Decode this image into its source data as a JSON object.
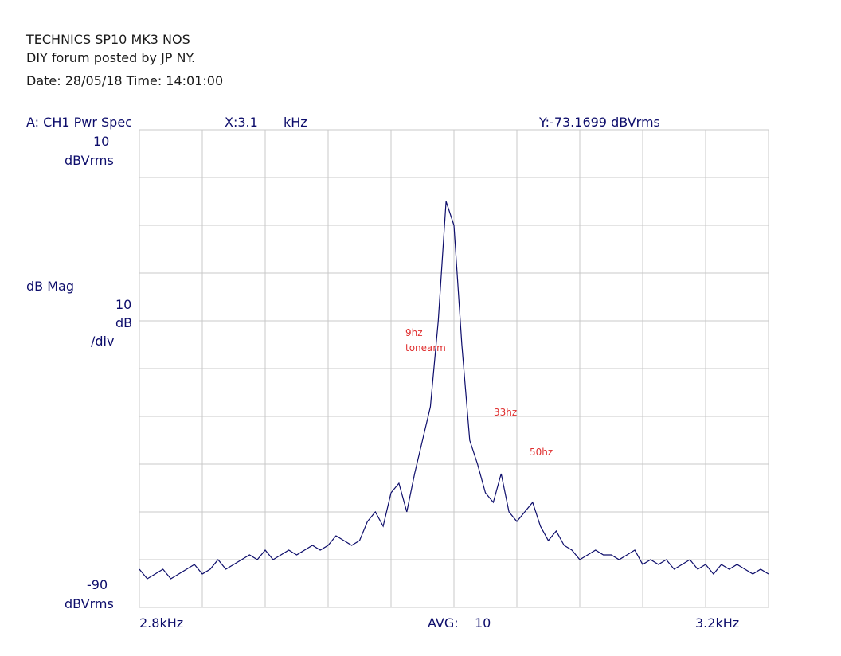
{
  "header": {
    "line1": "TECHNICS SP10 MK3 NOS",
    "line2": "DIY forum posted by JP NY.",
    "line3": "Date: 28/05/18  Time: 14:01:00"
  },
  "trace": {
    "label": "A:  CH1 Pwr Spec",
    "x_readout": "X:3.1",
    "x_unit": "kHz",
    "y_readout": "Y:-73.1699 dBVrms"
  },
  "yaxis": {
    "top_value": "10",
    "top_unit": "dBVrms",
    "mag_label": "dB Mag",
    "scale_value": "10",
    "scale_unit": "dB",
    "scale_div": "/div",
    "bottom_value": "-90",
    "bottom_unit": "dBVrms"
  },
  "xaxis": {
    "start_label": "2.8kHz",
    "avg_label": "AVG:",
    "avg_value": "10",
    "end_label": "3.2kHz"
  },
  "annotations": {
    "a1_line1": "9hz",
    "a1_line2": "tonearm",
    "a2": "33hz",
    "a3": "50hz"
  },
  "colors": {
    "trace": "#0d0d6b",
    "grid": "#c8c8c8",
    "annotation": "#e03030",
    "text_blue": "#0d0d6b"
  },
  "chart_data": {
    "type": "line",
    "xlabel": "",
    "ylabel": "dB Mag",
    "xlim": [
      2800,
      3200
    ],
    "ylim": [
      -90,
      10
    ],
    "grid": true,
    "series": [
      {
        "x": [
          2800,
          2805,
          2810,
          2815,
          2820,
          2825,
          2830,
          2835,
          2840,
          2845,
          2850,
          2855,
          2860,
          2865,
          2870,
          2875,
          2880,
          2885,
          2890,
          2895,
          2900,
          2905,
          2910,
          2915,
          2920,
          2925,
          2930,
          2935,
          2940,
          2945,
          2950,
          2955,
          2960,
          2965,
          2970,
          2975,
          2980,
          2985,
          2990,
          2995,
          3000,
          3005,
          3010,
          3015,
          3020,
          3025,
          3030,
          3035,
          3040,
          3045,
          3050,
          3055,
          3060,
          3065,
          3070,
          3075,
          3080,
          3085,
          3090,
          3095,
          3100,
          3105,
          3110,
          3115,
          3120,
          3125,
          3130,
          3135,
          3140,
          3145,
          3150,
          3155,
          3160,
          3165,
          3170,
          3175,
          3180,
          3185,
          3190,
          3195,
          3200
        ],
        "y": [
          -82,
          -84,
          -83,
          -82,
          -84,
          -83,
          -82,
          -81,
          -83,
          -82,
          -80,
          -82,
          -81,
          -80,
          -79,
          -80,
          -78,
          -80,
          -79,
          -78,
          -79,
          -78,
          -77,
          -78,
          -77,
          -75,
          -76,
          -77,
          -76,
          -72,
          -70,
          -73,
          -66,
          -64,
          -70,
          -62,
          -55,
          -48,
          -30,
          -5,
          -10,
          -35,
          -55,
          -60,
          -66,
          -68,
          -62,
          -70,
          -72,
          -70,
          -68,
          -73,
          -76,
          -74,
          -77,
          -78,
          -80,
          -79,
          -78,
          -79,
          -79,
          -80,
          -79,
          -78,
          -81,
          -80,
          -81,
          -80,
          -82,
          -81,
          -80,
          -82,
          -81,
          -83,
          -81,
          -82,
          -81,
          -82,
          -83,
          -82,
          -83
        ]
      }
    ]
  }
}
